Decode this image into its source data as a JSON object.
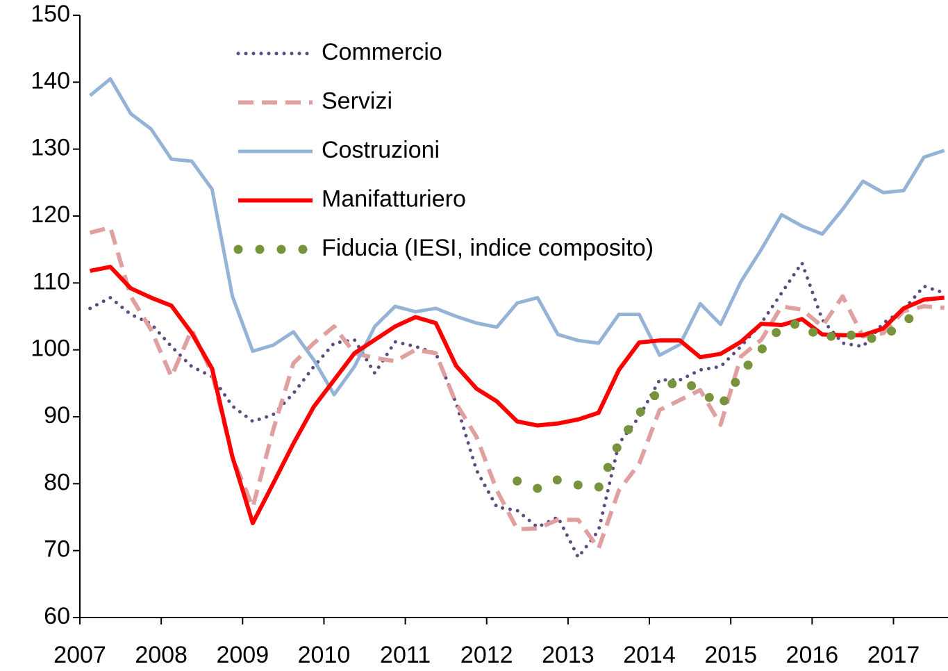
{
  "chart_data": {
    "type": "line",
    "xlim": [
      2007,
      2017.67
    ],
    "xticks": [
      2007,
      2008,
      2009,
      2010,
      2011,
      2012,
      2013,
      2014,
      2015,
      2016,
      2017
    ],
    "ylim": [
      60,
      150
    ],
    "yticks": [
      60,
      70,
      80,
      90,
      100,
      110,
      120,
      130,
      140,
      150
    ],
    "grid": false,
    "legend": "top-left",
    "x": [
      2007.125,
      2007.375,
      2007.625,
      2007.875,
      2008.125,
      2008.375,
      2008.625,
      2008.875,
      2009.125,
      2009.375,
      2009.625,
      2009.875,
      2010.125,
      2010.375,
      2010.625,
      2010.875,
      2011.125,
      2011.375,
      2011.625,
      2011.875,
      2012.125,
      2012.375,
      2012.625,
      2012.875,
      2013.125,
      2013.375,
      2013.625,
      2013.875,
      2014.125,
      2014.375,
      2014.625,
      2014.875,
      2015.125,
      2015.375,
      2015.625,
      2015.875,
      2016.125,
      2016.375,
      2016.625,
      2016.875,
      2017.125,
      2017.375,
      2017.625
    ],
    "series": [
      {
        "name": "Commercio",
        "color": "#5e4a7c",
        "style": "dotted",
        "values": [
          106.2,
          107.8,
          105.3,
          103.9,
          100.5,
          97.5,
          96,
          91.6,
          89.3,
          90.3,
          93.5,
          97.5,
          101,
          101.5,
          96.5,
          101.2,
          100.5,
          99.5,
          92,
          82,
          76.5,
          76,
          73.5,
          75,
          69,
          73,
          86,
          90,
          95.5,
          95.5,
          97,
          97.5,
          100.5,
          104,
          108.5,
          113,
          104.5,
          101,
          100.5,
          104,
          106,
          109.5,
          108.5
        ]
      },
      {
        "name": "Servizi",
        "color": "#e0a0a0",
        "style": "dashed",
        "values": [
          117.5,
          118.3,
          108,
          103,
          96,
          103,
          96.5,
          84,
          76.5,
          88,
          98,
          101,
          103.5,
          99.5,
          98.8,
          98.3,
          100,
          99.5,
          92,
          87,
          79,
          73.2,
          73.3,
          74.6,
          74.6,
          70.3,
          79,
          83,
          91,
          92.5,
          94,
          88.8,
          99,
          101.5,
          106.5,
          106,
          103.5,
          108,
          102,
          102.5,
          105.8,
          106.5,
          106.3
        ]
      },
      {
        "name": "Costruzioni",
        "color": "#95b3d7",
        "style": "solid",
        "values": [
          138,
          140.5,
          135.3,
          133,
          128.5,
          128.2,
          124,
          108,
          99.8,
          100.7,
          102.7,
          98.5,
          93.3,
          97.5,
          103.5,
          106.5,
          105.7,
          106.2,
          105,
          104,
          103.4,
          107,
          107.8,
          102.3,
          101.4,
          101,
          105.3,
          105.3,
          99.2,
          100.8,
          106.9,
          103.8,
          110.2,
          115,
          120.2,
          118.5,
          117.3,
          121,
          125.2,
          123.5,
          123.8,
          128.8,
          129.8
        ]
      },
      {
        "name": "Manifatturiero",
        "color": "#ff0000",
        "style": "solid-thick",
        "values": [
          111.8,
          112.4,
          109.2,
          107.8,
          106.6,
          102.5,
          97.2,
          84,
          74.1,
          80,
          86,
          91.5,
          95.5,
          99.5,
          101.5,
          103.5,
          104.9,
          104,
          97.6,
          94.2,
          92.3,
          89.3,
          88.7,
          89,
          89.6,
          90.6,
          97,
          101.1,
          101.4,
          101.4,
          98.9,
          99.4,
          101.2,
          103.9,
          103.7,
          104.6,
          102.3,
          102.2,
          102.2,
          103.2,
          106.2,
          107.5,
          107.8
        ]
      },
      {
        "name": "Fiducia (IESI,  indice composito)",
        "color": "#77933c",
        "style": "dots",
        "values": [
          null,
          null,
          null,
          null,
          null,
          null,
          null,
          null,
          null,
          null,
          null,
          null,
          null,
          null,
          null,
          null,
          null,
          null,
          null,
          null,
          null,
          80.4,
          79.3,
          80.6,
          79.8,
          79.4,
          86,
          90.5,
          94,
          95.5,
          94,
          91.5,
          96.5,
          100,
          103.5,
          104,
          101.5,
          102.7,
          101.5,
          102,
          104,
          106.5,
          null
        ]
      }
    ]
  }
}
